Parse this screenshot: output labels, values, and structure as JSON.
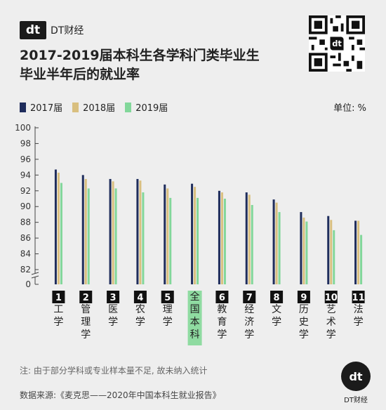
{
  "brand": {
    "logo": "dt",
    "name": "DT财经"
  },
  "title_line1": "2017-2019届本科生各学科门类毕业生",
  "title_line2": "毕业半年后的就业率",
  "unit": "单位: %",
  "note": "注: 由于部分学科或专业样本量不足, 故未纳入统计",
  "source": "数据来源:《麦克思——2020年中国本科生就业报告》",
  "corner_logo": {
    "mark": "dt",
    "text": "DT财经"
  },
  "qr_icon": "qr-code-icon",
  "colors": {
    "y2017": "#1f2d5c",
    "y2018": "#d9bf7f",
    "y2019": "#82d79a",
    "highlight": "#8fdba1",
    "rank_box": "#111111"
  },
  "chart_data": {
    "type": "bar",
    "categories": [
      "工学",
      "管理学",
      "医学",
      "农学",
      "理学",
      "全国本科",
      "教育学",
      "经济学",
      "文学",
      "历史学",
      "艺术学",
      "法学"
    ],
    "ranks": [
      "1",
      "2",
      "3",
      "4",
      "5",
      "",
      "6",
      "7",
      "8",
      "9",
      "10",
      "11"
    ],
    "series": [
      {
        "name": "2017届",
        "values": [
          94.7,
          94.0,
          93.5,
          93.5,
          92.8,
          92.9,
          92.0,
          91.8,
          90.9,
          89.3,
          88.8,
          88.2
        ]
      },
      {
        "name": "2018届",
        "values": [
          94.3,
          93.5,
          93.2,
          93.3,
          92.3,
          92.5,
          91.8,
          91.5,
          90.5,
          88.6,
          88.3,
          88.2
        ]
      },
      {
        "name": "2019届",
        "values": [
          93.0,
          92.3,
          92.3,
          91.8,
          91.1,
          91.1,
          91.0,
          90.2,
          89.3,
          88.1,
          87.0,
          86.4
        ]
      }
    ],
    "yticks": [
      "0",
      "82",
      "84",
      "86",
      "88",
      "90",
      "92",
      "94",
      "96",
      "98",
      "100"
    ],
    "ylim": [
      82,
      100
    ],
    "axis_break": true,
    "grid": false,
    "legend": "top-left"
  }
}
